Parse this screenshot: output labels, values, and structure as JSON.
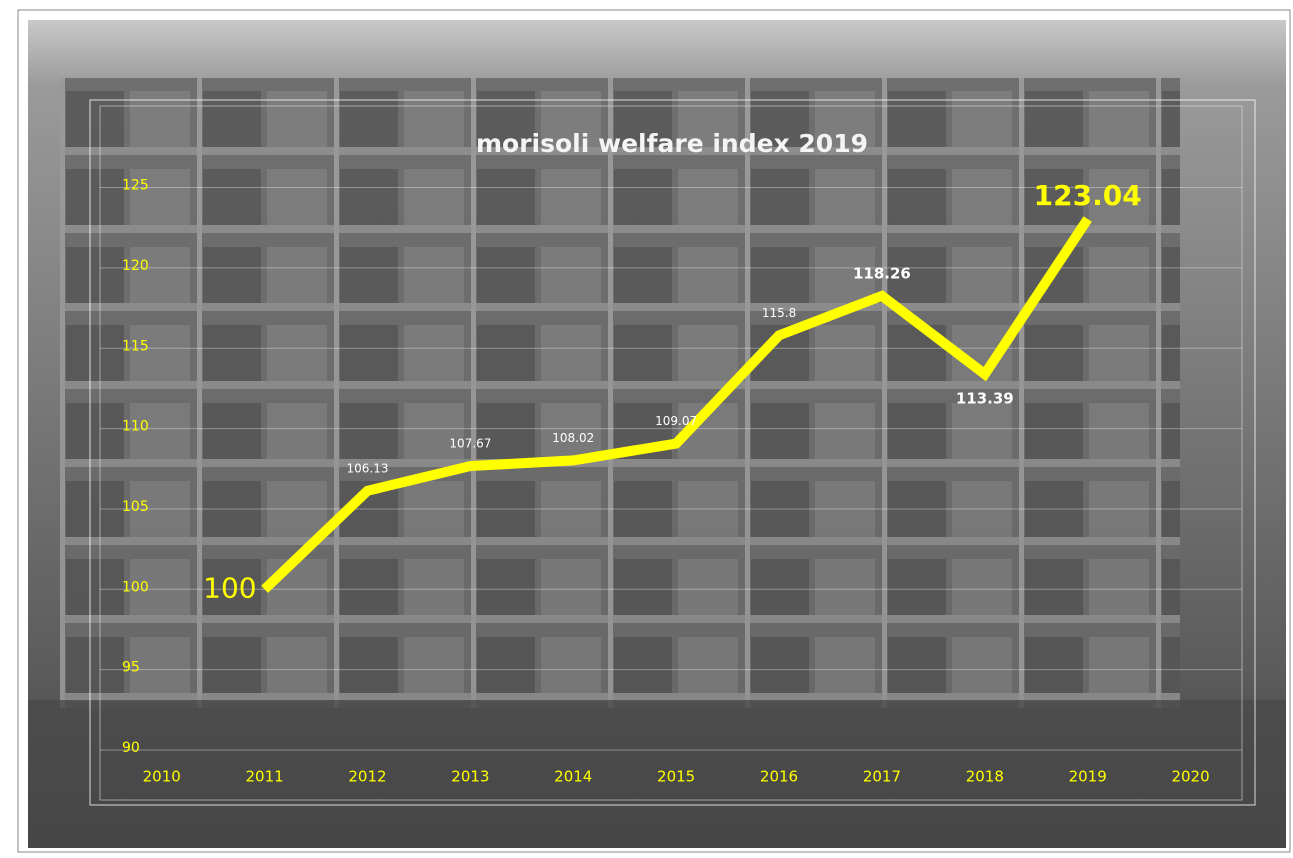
{
  "chart_data": {
    "type": "line",
    "title": "morisoli welfare index 2019",
    "x": [
      2011,
      2012,
      2013,
      2014,
      2015,
      2016,
      2017,
      2018,
      2019
    ],
    "series": [
      {
        "name": "welfare index",
        "color": "#ffff00",
        "values": [
          100,
          106.13,
          107.67,
          108.02,
          109.07,
          115.8,
          118.26,
          113.39,
          123.04
        ]
      }
    ],
    "xlim": [
      2009.4,
      2020.5
    ],
    "xticks": [
      2010,
      2011,
      2012,
      2013,
      2014,
      2015,
      2016,
      2017,
      2018,
      2019,
      2020
    ],
    "ylim": [
      90,
      130
    ],
    "yticks": [
      90,
      95,
      100,
      105,
      110,
      115,
      120,
      125
    ],
    "grid": true
  }
}
